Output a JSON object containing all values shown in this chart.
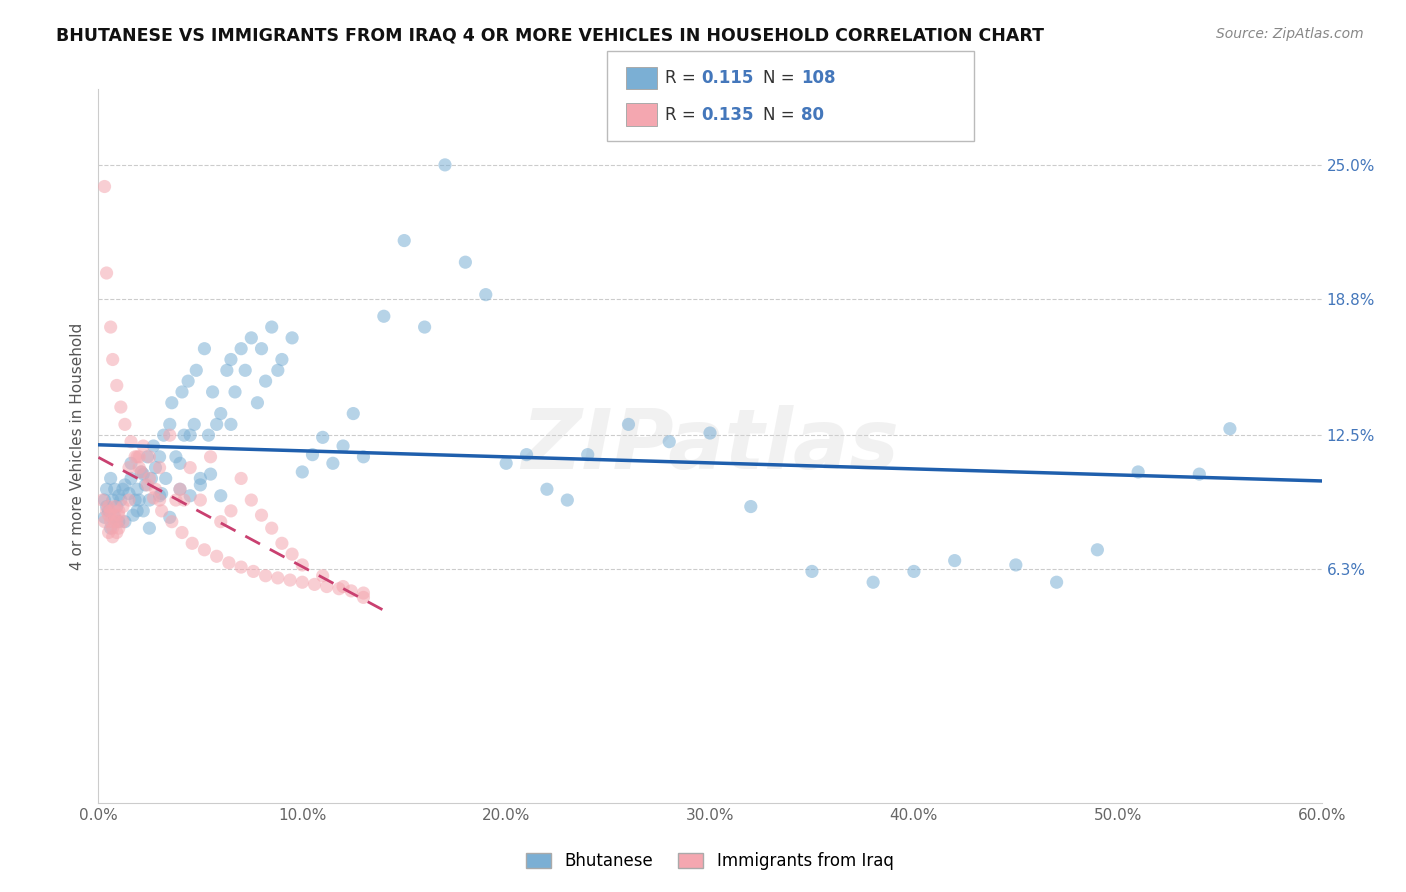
{
  "title": "BHUTANESE VS IMMIGRANTS FROM IRAQ 4 OR MORE VEHICLES IN HOUSEHOLD CORRELATION CHART",
  "source": "Source: ZipAtlas.com",
  "ylabel": "4 or more Vehicles in Household",
  "xlim": [
    0.0,
    0.6
  ],
  "ylim": [
    -0.045,
    0.285
  ],
  "ytick_vals": [
    0.063,
    0.125,
    0.188,
    0.25
  ],
  "ytick_labels": [
    "6.3%",
    "12.5%",
    "18.8%",
    "25.0%"
  ],
  "xtick_vals": [
    0.0,
    0.1,
    0.2,
    0.3,
    0.4,
    0.5,
    0.6
  ],
  "xtick_labels": [
    "0.0%",
    "10.0%",
    "20.0%",
    "30.0%",
    "40.0%",
    "50.0%",
    "60.0%"
  ],
  "blue_R": 0.115,
  "blue_N": 108,
  "pink_R": 0.135,
  "pink_N": 80,
  "blue_color": "#7BAFD4",
  "pink_color": "#F4A7B0",
  "blue_line_color": "#1F5FAD",
  "pink_line_color": "#C94070",
  "watermark": "ZIPatlas",
  "legend_label_blue": "Bhutanese",
  "legend_label_pink": "Immigrants from Iraq",
  "blue_x": [
    0.003,
    0.004,
    0.005,
    0.006,
    0.007,
    0.008,
    0.009,
    0.01,
    0.011,
    0.012,
    0.013,
    0.015,
    0.016,
    0.017,
    0.018,
    0.019,
    0.02,
    0.021,
    0.022,
    0.023,
    0.024,
    0.025,
    0.026,
    0.027,
    0.028,
    0.03,
    0.031,
    0.032,
    0.033,
    0.035,
    0.036,
    0.038,
    0.04,
    0.041,
    0.042,
    0.044,
    0.045,
    0.047,
    0.048,
    0.05,
    0.052,
    0.054,
    0.056,
    0.058,
    0.06,
    0.063,
    0.065,
    0.067,
    0.07,
    0.072,
    0.075,
    0.078,
    0.08,
    0.082,
    0.085,
    0.088,
    0.09,
    0.095,
    0.1,
    0.105,
    0.11,
    0.115,
    0.12,
    0.125,
    0.13,
    0.14,
    0.15,
    0.16,
    0.17,
    0.18,
    0.19,
    0.2,
    0.21,
    0.22,
    0.23,
    0.24,
    0.26,
    0.28,
    0.3,
    0.32,
    0.35,
    0.38,
    0.4,
    0.42,
    0.45,
    0.47,
    0.49,
    0.51,
    0.54,
    0.555,
    0.003,
    0.004,
    0.006,
    0.008,
    0.01,
    0.013,
    0.016,
    0.019,
    0.022,
    0.025,
    0.03,
    0.035,
    0.04,
    0.045,
    0.05,
    0.055,
    0.06,
    0.065
  ],
  "blue_y": [
    0.095,
    0.1,
    0.09,
    0.105,
    0.095,
    0.1,
    0.092,
    0.085,
    0.095,
    0.1,
    0.085,
    0.098,
    0.105,
    0.088,
    0.095,
    0.1,
    0.095,
    0.108,
    0.09,
    0.102,
    0.115,
    0.095,
    0.105,
    0.12,
    0.11,
    0.115,
    0.098,
    0.125,
    0.105,
    0.13,
    0.14,
    0.115,
    0.1,
    0.145,
    0.125,
    0.15,
    0.125,
    0.13,
    0.155,
    0.105,
    0.165,
    0.125,
    0.145,
    0.13,
    0.135,
    0.155,
    0.16,
    0.145,
    0.165,
    0.155,
    0.17,
    0.14,
    0.165,
    0.15,
    0.175,
    0.155,
    0.16,
    0.17,
    0.108,
    0.116,
    0.124,
    0.112,
    0.12,
    0.135,
    0.115,
    0.18,
    0.215,
    0.175,
    0.25,
    0.205,
    0.19,
    0.112,
    0.116,
    0.1,
    0.095,
    0.116,
    0.13,
    0.122,
    0.126,
    0.092,
    0.062,
    0.057,
    0.062,
    0.067,
    0.065,
    0.057,
    0.072,
    0.108,
    0.107,
    0.128,
    0.087,
    0.092,
    0.082,
    0.087,
    0.097,
    0.102,
    0.112,
    0.09,
    0.107,
    0.082,
    0.097,
    0.087,
    0.112,
    0.097,
    0.102,
    0.107,
    0.097,
    0.13
  ],
  "pink_x": [
    0.002,
    0.003,
    0.004,
    0.005,
    0.005,
    0.005,
    0.006,
    0.006,
    0.007,
    0.007,
    0.008,
    0.008,
    0.008,
    0.009,
    0.009,
    0.01,
    0.01,
    0.01,
    0.012,
    0.012,
    0.015,
    0.015,
    0.018,
    0.02,
    0.02,
    0.022,
    0.025,
    0.025,
    0.028,
    0.03,
    0.03,
    0.035,
    0.038,
    0.04,
    0.042,
    0.045,
    0.05,
    0.055,
    0.06,
    0.065,
    0.07,
    0.075,
    0.08,
    0.085,
    0.09,
    0.095,
    0.1,
    0.11,
    0.12,
    0.13,
    0.003,
    0.004,
    0.006,
    0.007,
    0.009,
    0.011,
    0.013,
    0.016,
    0.019,
    0.021,
    0.024,
    0.027,
    0.031,
    0.036,
    0.041,
    0.046,
    0.052,
    0.058,
    0.064,
    0.07,
    0.076,
    0.082,
    0.088,
    0.094,
    0.1,
    0.106,
    0.112,
    0.118,
    0.124,
    0.13
  ],
  "pink_y": [
    0.095,
    0.085,
    0.09,
    0.08,
    0.088,
    0.092,
    0.085,
    0.09,
    0.078,
    0.082,
    0.085,
    0.088,
    0.092,
    0.08,
    0.085,
    0.082,
    0.088,
    0.09,
    0.085,
    0.092,
    0.11,
    0.095,
    0.115,
    0.11,
    0.115,
    0.12,
    0.105,
    0.115,
    0.1,
    0.095,
    0.11,
    0.125,
    0.095,
    0.1,
    0.095,
    0.11,
    0.095,
    0.115,
    0.085,
    0.09,
    0.105,
    0.095,
    0.088,
    0.082,
    0.075,
    0.07,
    0.065,
    0.06,
    0.055,
    0.05,
    0.24,
    0.2,
    0.175,
    0.16,
    0.148,
    0.138,
    0.13,
    0.122,
    0.115,
    0.108,
    0.102,
    0.096,
    0.09,
    0.085,
    0.08,
    0.075,
    0.072,
    0.069,
    0.066,
    0.064,
    0.062,
    0.06,
    0.059,
    0.058,
    0.057,
    0.056,
    0.055,
    0.054,
    0.053,
    0.052
  ]
}
